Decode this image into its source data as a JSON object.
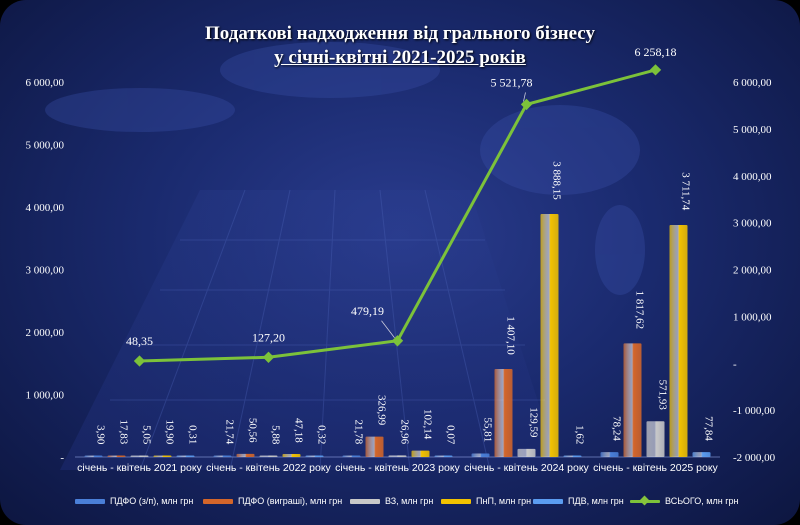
{
  "title": {
    "line1": "Податкові надходження від грального бізнесу",
    "line2": "у січні-квітні 2021-2025 років"
  },
  "colors": {
    "pdfo_zp": "#4a7fd8",
    "pdfo_win": "#d4662a",
    "vz": "#c8c8c8",
    "pnp": "#f2c200",
    "pdv": "#5b9cf0",
    "total": "#7cc23a"
  },
  "chart_data": {
    "type": "bar",
    "categories": [
      "січень - квітень 2021 року",
      "січень - квітень 2022 року",
      "січень - квітень 2023 року",
      "січень - квітень 2024 року",
      "січень - квітень 2025 року"
    ],
    "series": [
      {
        "name": "ПДФО (з/п), млн грн",
        "values": [
          3.9,
          21.74,
          21.78,
          55.81,
          78.24
        ],
        "labels": [
          "3,90",
          "21,74",
          "21,78",
          "55,81",
          "78,24"
        ]
      },
      {
        "name": "ПДФО (виграші), млн грн",
        "values": [
          17.83,
          50.56,
          326.99,
          1407.1,
          1817.62
        ],
        "labels": [
          "17,83",
          "50,56",
          "326,99",
          "1 407,10",
          "1 817,62"
        ]
      },
      {
        "name": "ВЗ, млн грн",
        "values": [
          5.05,
          5.88,
          26.96,
          129.59,
          571.93
        ],
        "labels": [
          "5,05",
          "5,88",
          "26,96",
          "129,59",
          "571,93"
        ]
      },
      {
        "name": "ПнП, млн грн",
        "values": [
          19.9,
          47.18,
          102.14,
          3888.15,
          3711.74
        ],
        "labels": [
          "19,90",
          "47,18",
          "102,14",
          "3 888,15",
          "3 711,74"
        ]
      },
      {
        "name": "ПДВ, млн грн",
        "values": [
          0.31,
          0.32,
          0.07,
          1.62,
          77.84
        ],
        "labels": [
          "0,31",
          "0,32",
          "0,07",
          "1,62",
          "77,84"
        ]
      },
      {
        "name": "ВСЬОГО, млн грн",
        "type": "line",
        "axis": "right",
        "values": [
          48.35,
          127.2,
          479.19,
          5521.78,
          6258.18
        ],
        "labels": [
          "48,35",
          "127,20",
          "479,19",
          "5 521,78",
          "6 258,18"
        ]
      }
    ],
    "left_axis": {
      "ylim": [
        0,
        6000
      ],
      "ticks": [
        {
          "v": 0,
          "label": "-"
        },
        {
          "v": 1000,
          "label": "1 000,00"
        },
        {
          "v": 2000,
          "label": "2 000,00"
        },
        {
          "v": 3000,
          "label": "3 000,00"
        },
        {
          "v": 4000,
          "label": "4 000,00"
        },
        {
          "v": 5000,
          "label": "5 000,00"
        },
        {
          "v": 6000,
          "label": "6 000,00"
        }
      ]
    },
    "right_axis": {
      "ylim": [
        -2000,
        6000
      ],
      "ticks": [
        {
          "v": -2000,
          "label": "-2 000,00"
        },
        {
          "v": -1000,
          "label": "-1 000,00"
        },
        {
          "v": 0,
          "label": "-"
        },
        {
          "v": 1000,
          "label": "1 000,00"
        },
        {
          "v": 2000,
          "label": "2 000,00"
        },
        {
          "v": 3000,
          "label": "3 000,00"
        },
        {
          "v": 4000,
          "label": "4 000,00"
        },
        {
          "v": 5000,
          "label": "5 000,00"
        },
        {
          "v": 6000,
          "label": "6 000,00"
        }
      ]
    },
    "grid": false,
    "legend_position": "bottom"
  }
}
